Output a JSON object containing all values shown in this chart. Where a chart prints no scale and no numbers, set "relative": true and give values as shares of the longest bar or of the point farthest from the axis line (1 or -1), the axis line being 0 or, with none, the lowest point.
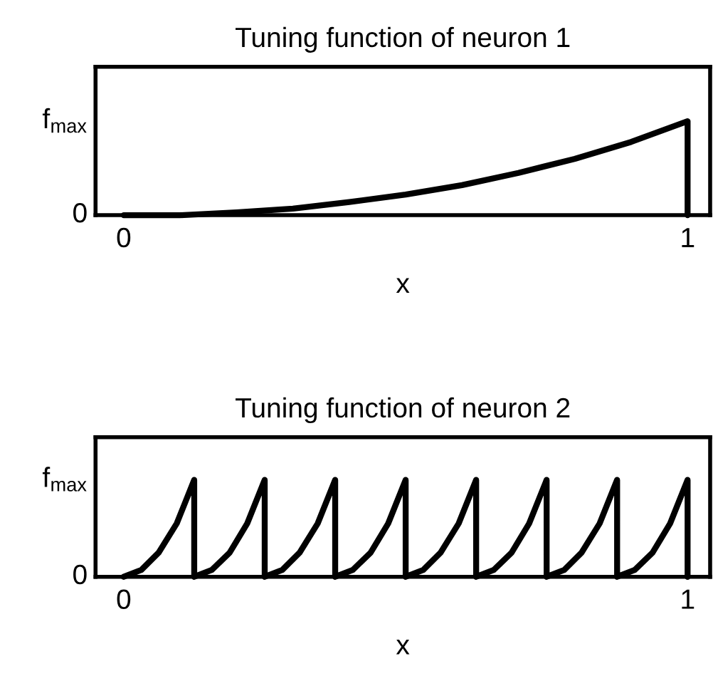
{
  "chart_data": [
    {
      "type": "line",
      "title": "Tuning function of neuron 1",
      "xlabel": "x",
      "xlim": [
        -0.05,
        1.04
      ],
      "xticks": [
        0,
        1
      ],
      "relative": true,
      "annotations": [
        "f$_{max}$",
        "0"
      ],
      "grid": false,
      "legend": false,
      "marker": "none",
      "line_style": "solid",
      "series": [
        {
          "color": "#000000",
          "x": [
            0,
            0.1,
            0.2,
            0.3,
            0.4,
            0.5,
            0.6,
            0.7,
            0.8,
            0.9,
            1,
            1
          ],
          "values": [
            0,
            0.0,
            0.03,
            0.07,
            0.14,
            0.22,
            0.32,
            0.45,
            0.6,
            0.78,
            1,
            0
          ]
        }
      ]
    },
    {
      "type": "line",
      "title": "Tuning function of neuron 2",
      "xlabel": "x",
      "xlim": [
        -0.05,
        1.04
      ],
      "xticks": [
        0,
        1
      ],
      "relative": true,
      "annotations": [
        "f$_{max}$",
        "0"
      ],
      "grid": false,
      "legend": false,
      "marker": "none",
      "line_style": "solid",
      "series": [
        {
          "color": "#000000",
          "x": [
            0,
            0.031,
            0.062,
            0.094,
            0.125,
            0.125,
            0.156,
            0.188,
            0.219,
            0.25,
            0.25,
            0.281,
            0.312,
            0.344,
            0.375,
            0.375,
            0.406,
            0.438,
            0.469,
            0.5,
            0.5,
            0.531,
            0.562,
            0.594,
            0.625,
            0.625,
            0.656,
            0.688,
            0.719,
            0.75,
            0.75,
            0.781,
            0.812,
            0.844,
            0.875,
            0.875,
            0.906,
            0.938,
            0.969,
            1,
            1
          ],
          "values": [
            0,
            0.07,
            0.25,
            0.55,
            1,
            0,
            0.07,
            0.25,
            0.55,
            1,
            0,
            0.07,
            0.25,
            0.55,
            1,
            0,
            0.07,
            0.25,
            0.55,
            1,
            0,
            0.07,
            0.25,
            0.55,
            1,
            0,
            0.07,
            0.25,
            0.55,
            1,
            0,
            0.07,
            0.25,
            0.55,
            1,
            0,
            0.07,
            0.25,
            0.55,
            1,
            0
          ]
        }
      ]
    }
  ]
}
